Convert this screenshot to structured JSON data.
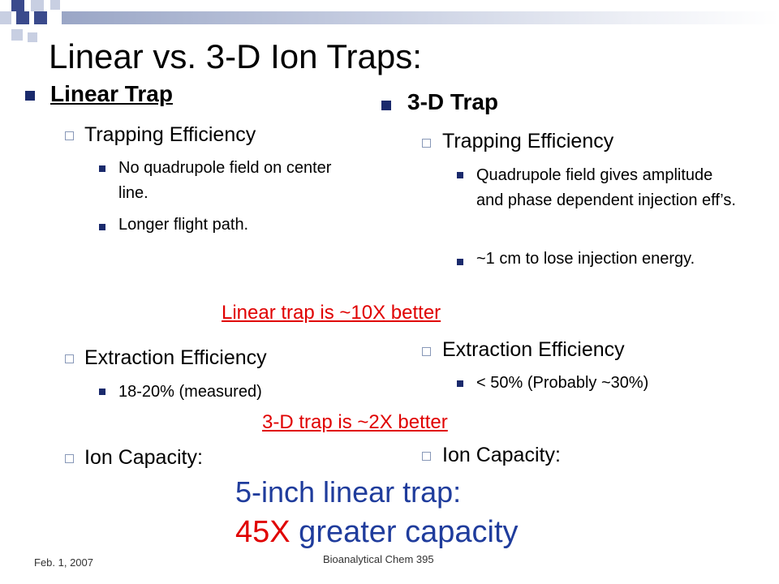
{
  "slide": {
    "title": "Linear vs. 3-D Ion Traps:",
    "accent_color": "#1a2a6c",
    "red_color": "#e00000",
    "blue_color": "#1f3c9c"
  },
  "left": {
    "heading": "Linear Trap",
    "trapping": {
      "label": "Trapping Efficiency",
      "bullets": [
        "No quadrupole field on center line.",
        "Longer flight path."
      ]
    },
    "extraction": {
      "label": "Extraction Efficiency",
      "bullets": [
        "18-20% (measured)"
      ]
    },
    "capacity": {
      "label": "Ion Capacity:"
    }
  },
  "right": {
    "heading": "3-D Trap",
    "trapping": {
      "label": "Trapping Efficiency",
      "bullets": [
        "Quadrupole field gives amplitude and phase dependent injection eff’s.",
        "~1 cm to lose injection energy."
      ]
    },
    "extraction": {
      "label": "Extraction Efficiency",
      "bullets": [
        "< 50% (Probably ~30%)"
      ]
    },
    "capacity": {
      "label": "Ion Capacity:"
    }
  },
  "notes": {
    "trapping_comparison": "Linear trap is ~10X better",
    "extraction_comparison": "3-D trap is ~2X better",
    "capacity_line1": "5-inch linear trap:",
    "capacity_line2_red": "45X",
    "capacity_line2_rest": " greater capacity"
  },
  "footer": {
    "date": "Feb. 1, 2007",
    "course": "Bioanalytical Chem 395"
  }
}
